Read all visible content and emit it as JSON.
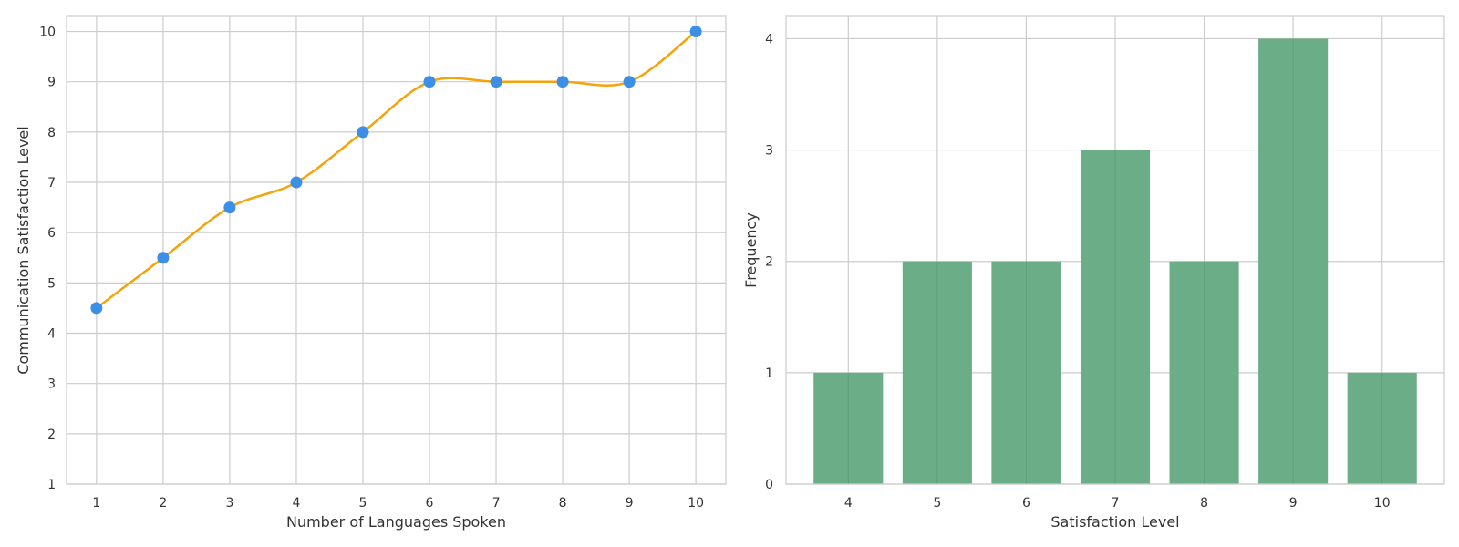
{
  "chart_data": [
    {
      "type": "line",
      "xlabel": "Number of Languages Spoken",
      "ylabel": "Communication Satisfaction Level",
      "x": [
        1,
        2,
        3,
        4,
        5,
        6,
        7,
        8,
        9,
        10
      ],
      "series": [
        {
          "values": [
            4.5,
            5.5,
            6.5,
            7,
            8,
            9,
            9,
            9,
            9,
            10
          ],
          "marker_color": "#3b8fe6",
          "line_color": "#f5a30a",
          "smoothed": true
        }
      ],
      "xlim": [
        0.55,
        10.45
      ],
      "ylim": [
        1,
        10.3
      ],
      "xticks": [
        "1",
        "2",
        "3",
        "4",
        "5",
        "6",
        "7",
        "8",
        "9",
        "10"
      ],
      "yticks": [
        "1",
        "2",
        "3",
        "4",
        "5",
        "6",
        "7",
        "8",
        "9",
        "10"
      ],
      "grid": true
    },
    {
      "type": "bar",
      "xlabel": "Satisfaction Level",
      "ylabel": "Frequency",
      "categories": [
        "4",
        "5",
        "6",
        "7",
        "8",
        "9",
        "10"
      ],
      "values": [
        1,
        2,
        2,
        3,
        2,
        4,
        1
      ],
      "bar_color": "#6aad87",
      "ylim": [
        0,
        4.2
      ],
      "yticks": [
        "0",
        "1",
        "2",
        "3",
        "4"
      ],
      "grid": true
    }
  ]
}
